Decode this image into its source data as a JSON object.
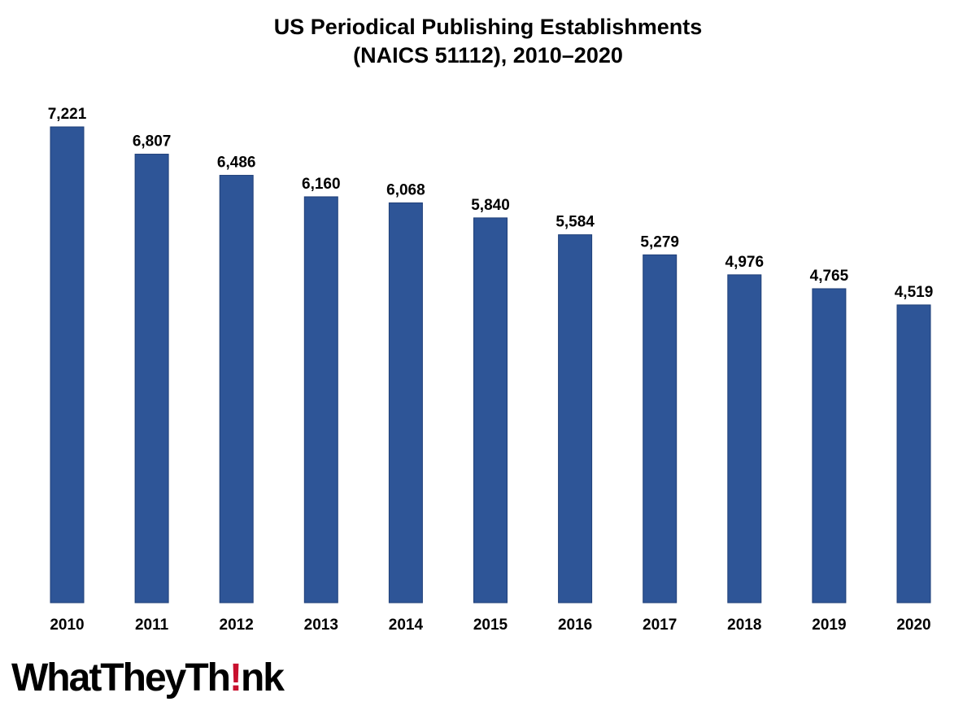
{
  "chart_data": {
    "type": "bar",
    "title_line1": "US Periodical Publishing Establishments",
    "title_line2": "(NAICS 51112), 2010–2020",
    "categories": [
      "2010",
      "2011",
      "2012",
      "2013",
      "2014",
      "2015",
      "2016",
      "2017",
      "2018",
      "2019",
      "2020"
    ],
    "values": [
      7221,
      6807,
      6486,
      6160,
      6068,
      5840,
      5584,
      5279,
      4976,
      4765,
      4519
    ],
    "data_labels": [
      "7,221",
      "6,807",
      "6,486",
      "6,160",
      "6,068",
      "5,840",
      "5,584",
      "5,279",
      "4,976",
      "4,765",
      "4,519"
    ],
    "xlabel": "",
    "ylabel": "",
    "ylim": [
      0,
      7221
    ],
    "grid": false,
    "legend": "none",
    "bar_color": "#2e5597"
  },
  "logo": {
    "part1": "WhatTheyTh",
    "part2": "!",
    "part3": "nk",
    "accent_color": "#c8102e"
  }
}
